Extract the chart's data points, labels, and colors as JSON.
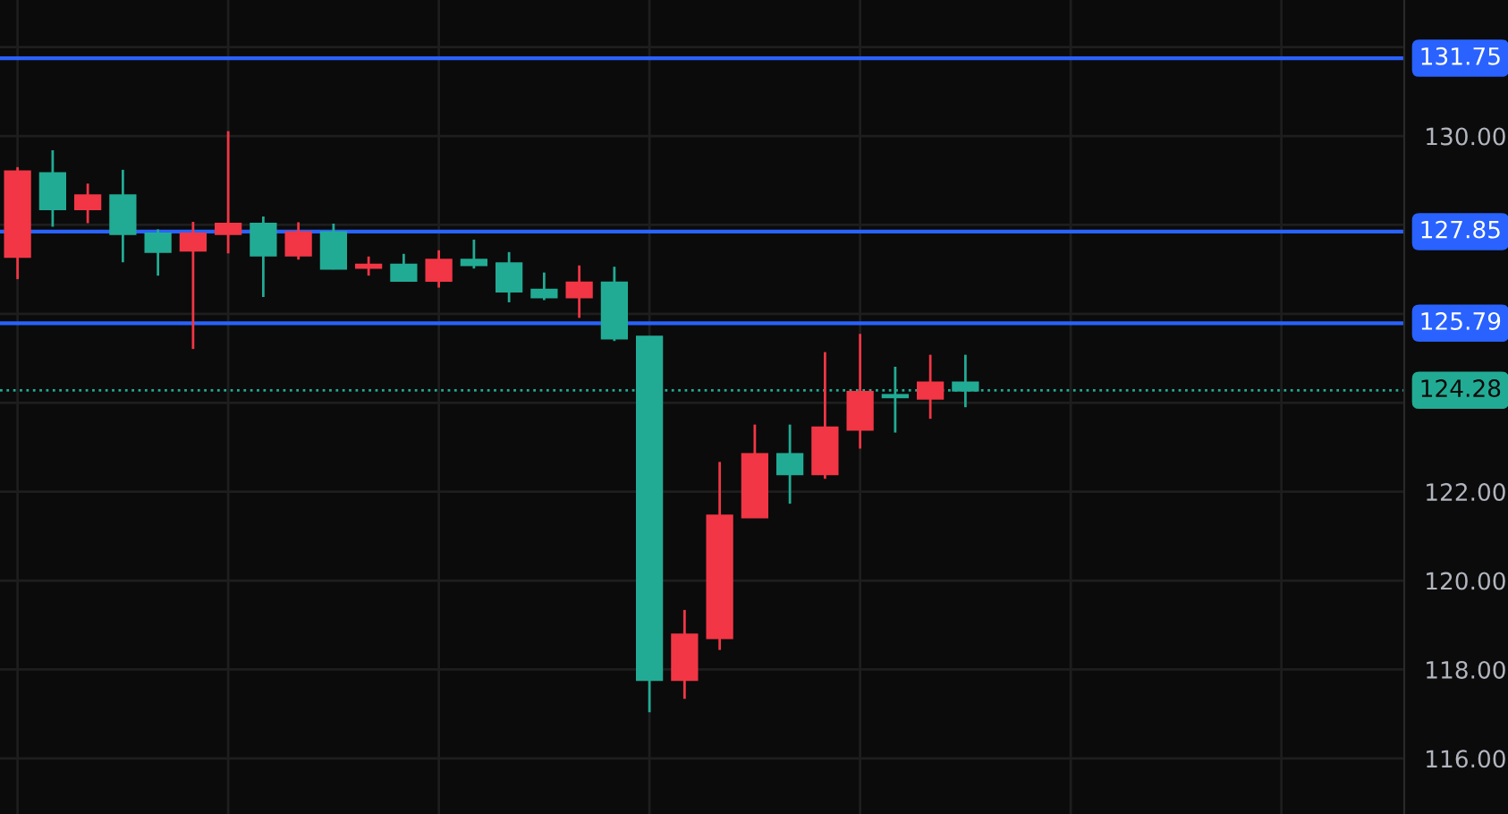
{
  "chart_data": {
    "type": "candlestick",
    "categories": [
      null,
      null,
      null,
      null,
      null,
      null,
      null,
      null,
      null,
      null,
      null,
      null,
      null,
      null,
      null,
      null,
      null,
      null,
      null,
      null,
      null,
      null,
      null,
      null,
      null,
      null,
      null,
      null,
      null,
      null,
      null,
      null,
      null,
      null,
      null,
      null,
      null,
      null,
      null,
      null
    ],
    "ohlc": [
      [
        127.29,
        129.3,
        126.78,
        129.2
      ],
      [
        129.16,
        129.68,
        127.96,
        128.36
      ],
      [
        128.36,
        128.93,
        128.04,
        128.66
      ],
      [
        128.66,
        129.24,
        127.16,
        127.8
      ],
      [
        127.8,
        127.9,
        126.86,
        127.4
      ],
      [
        127.43,
        128.07,
        125.21,
        127.8
      ],
      [
        127.8,
        130.11,
        127.36,
        128.02
      ],
      [
        128.02,
        128.19,
        126.38,
        127.32
      ],
      [
        127.32,
        128.06,
        127.22,
        127.83
      ],
      [
        127.83,
        128.03,
        127.0,
        127.02
      ],
      [
        127.04,
        127.29,
        126.86,
        127.1
      ],
      [
        127.1,
        127.35,
        126.75,
        126.75
      ],
      [
        126.75,
        127.43,
        126.59,
        127.21
      ],
      [
        127.21,
        127.67,
        127.02,
        127.1
      ],
      [
        127.13,
        127.39,
        126.26,
        126.51
      ],
      [
        126.54,
        126.93,
        126.31,
        126.38
      ],
      [
        126.38,
        127.09,
        125.91,
        126.7
      ],
      [
        126.7,
        127.06,
        125.39,
        125.45
      ],
      [
        125.48,
        125.48,
        117.04,
        117.77
      ],
      [
        117.77,
        119.34,
        117.34,
        118.78
      ],
      [
        118.71,
        122.67,
        118.44,
        121.46
      ],
      [
        121.43,
        123.51,
        121.43,
        122.84
      ],
      [
        122.84,
        123.51,
        121.73,
        122.4
      ],
      [
        122.4,
        125.14,
        122.29,
        123.44
      ],
      [
        123.4,
        125.55,
        122.97,
        124.24
      ],
      [
        124.17,
        124.81,
        123.33,
        124.13
      ],
      [
        124.1,
        125.08,
        123.64,
        124.45
      ],
      [
        124.45,
        125.08,
        123.9,
        124.28
      ],
      null,
      null,
      null,
      null,
      null,
      null,
      null,
      null,
      null,
      null,
      null,
      null
    ],
    "colors": [
      "#f23645",
      "#22ab94",
      "#f23645",
      "#22ab94",
      "#22ab94",
      "#f23645",
      "#f23645",
      "#22ab94",
      "#f23645",
      "#22ab94",
      "#f23645",
      "#22ab94",
      "#f23645",
      "#22ab94",
      "#22ab94",
      "#22ab94",
      "#f23645",
      "#22ab94",
      "#22ab94",
      "#f23645",
      "#f23645",
      "#f23645",
      "#22ab94",
      "#f23645",
      "#f23645",
      "#22ab94",
      "#f23645",
      "#22ab94",
      null,
      null,
      null,
      null,
      null,
      null,
      null,
      null,
      null,
      null,
      null,
      null
    ],
    "ylim": [
      114.75,
      133.06
    ],
    "yticks": [
      {
        "value": 116,
        "label": "116.00"
      },
      {
        "value": 118,
        "label": "118.00"
      },
      {
        "value": 120,
        "label": "120.00"
      },
      {
        "value": 122,
        "label": "122.00"
      },
      {
        "value": 124,
        "label": null
      },
      {
        "value": 126,
        "label": null
      },
      {
        "value": 128,
        "label": null
      },
      {
        "value": 130,
        "label": "130.00"
      },
      {
        "value": 132,
        "label": null
      }
    ],
    "tick_labels": "y",
    "grid": true,
    "ref_lines": [
      {
        "axis": "y",
        "value": 131.75,
        "label": "131.75",
        "color": "#2962ff",
        "line_style": "solid"
      },
      {
        "axis": "y",
        "value": 127.85,
        "label": "127.85",
        "color": "#2962ff",
        "line_style": "solid"
      },
      {
        "axis": "y",
        "value": 125.79,
        "label": "125.79",
        "color": "#2962ff",
        "line_style": "solid"
      },
      {
        "axis": "y",
        "value": 124.28,
        "label": "124.28",
        "color": "#22ab94",
        "line_style": "dotted"
      }
    ]
  }
}
